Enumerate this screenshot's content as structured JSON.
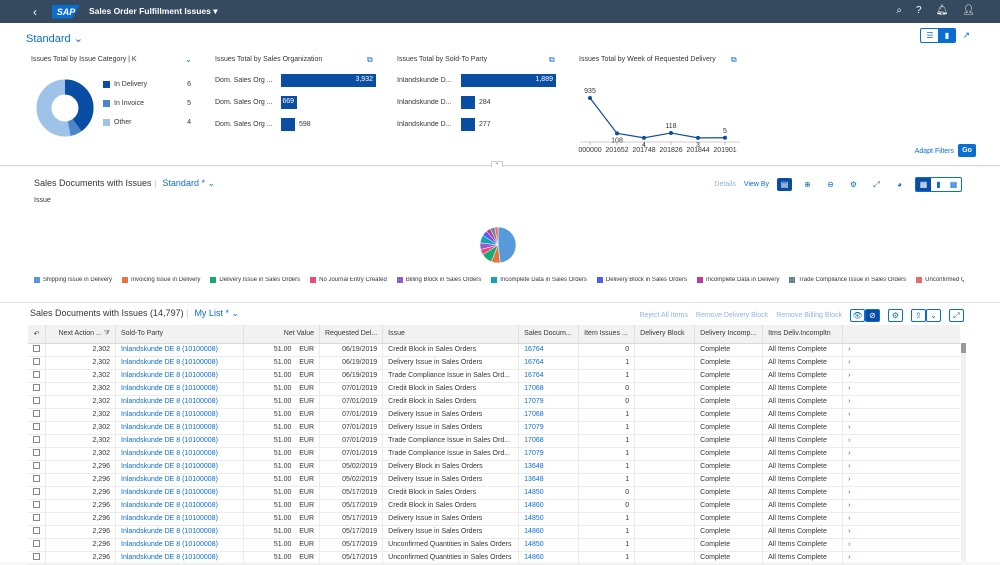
{
  "shell": {
    "title": "Sales Order Fulfillment Issues"
  },
  "header": {
    "variant": "Standard",
    "adapt_filters": "Adapt Filters",
    "go": "Go"
  },
  "cards": {
    "category": {
      "title": "Issues Total by Issue Category  | K",
      "legend": [
        {
          "label": "In Delivery",
          "value": "6",
          "color": "#0a4ea3"
        },
        {
          "label": "In Invoice",
          "value": "5",
          "color": "#4a86c8"
        },
        {
          "label": "Other",
          "value": "4",
          "color": "#9fc3e8"
        }
      ]
    },
    "sales_org": {
      "title": "Issues Total by Sales Organization",
      "rows": [
        {
          "label": "Dom. Sales Org ...",
          "value": "3,932",
          "num": 3932
        },
        {
          "label": "Dom. Sales Org ...",
          "value": "669",
          "num": 669
        },
        {
          "label": "Dom. Sales Org ...",
          "value": "598",
          "num": 598
        }
      ]
    },
    "sold_to": {
      "title": "Issues Total by Sold-To Party",
      "rows": [
        {
          "label": "Inlandskunde D...",
          "value": "1,889",
          "num": 1889
        },
        {
          "label": "Inlandskunde D...",
          "value": "284",
          "num": 284
        },
        {
          "label": "Inlandskunde D...",
          "value": "277",
          "num": 277
        }
      ]
    },
    "week": {
      "title": "Issues Total by Week of Requested Delivery"
    }
  },
  "chart_data": {
    "type": "line",
    "categories": [
      "000000",
      "201652",
      "201748",
      "201826",
      "201844",
      "201901"
    ],
    "values": [
      935,
      108,
      4,
      118,
      3,
      5
    ],
    "labels": [
      "935",
      "108",
      "4",
      "118",
      "3",
      "5"
    ]
  },
  "section1": {
    "title": "Sales Documents with Issues",
    "variant": "Standard *",
    "issue_label": "Issue",
    "details": "Details",
    "view_by": "View By",
    "legend": [
      {
        "label": "Shipping Issue in Delivery",
        "color": "#5899da"
      },
      {
        "label": "Invoicing Issue in Delivery",
        "color": "#e8743b"
      },
      {
        "label": "Delivery Issue in Sales Orders",
        "color": "#19a979"
      },
      {
        "label": "No Journal Entry Created",
        "color": "#ed4a7b"
      },
      {
        "label": "Billing Block in Sales Orders",
        "color": "#945ecf"
      },
      {
        "label": "Incomplete Data in Sales Orders",
        "color": "#13a4b4"
      },
      {
        "label": "Delivery Block in Sales Orders",
        "color": "#525df4"
      },
      {
        "label": "Incomplete Data in Delivery",
        "color": "#bf399e"
      },
      {
        "label": "Trade Compliance Issue in Sales Orders",
        "color": "#6c8893"
      },
      {
        "label": "Unconfirmed Q",
        "color": "#ee6868"
      }
    ]
  },
  "section2": {
    "title": "Sales Documents with Issues (14,797)",
    "variant": "My List *",
    "actions": [
      "Reject All Items",
      "Remove Delivery Block",
      "Remove Billing Block"
    ]
  },
  "table": {
    "columns": [
      "Next Action ...",
      "Sold-To Party",
      "Net Value",
      "Requested Del...",
      "Issue",
      "Sales Docum...",
      "Item Issues ...",
      "Delivery Block",
      "Delivery Incomp...",
      "Itms Deliv.Incompltn"
    ],
    "rows": [
      [
        "2,302",
        "Inlandskunde DE 8 (10100008)",
        "51.00",
        "EUR",
        "06/19/2019",
        "Credit Block in Sales Orders",
        "16764",
        "0",
        "",
        "Complete",
        "All Items Complete"
      ],
      [
        "2,302",
        "Inlandskunde DE 8 (10100008)",
        "51.00",
        "EUR",
        "06/19/2019",
        "Delivery Issue in Sales Orders",
        "16764",
        "1",
        "",
        "Complete",
        "All Items Complete"
      ],
      [
        "2,302",
        "Inlandskunde DE 8 (10100008)",
        "51.00",
        "EUR",
        "06/19/2019",
        "Trade Compliance Issue in Sales Ord...",
        "16764",
        "1",
        "",
        "Complete",
        "All Items Complete"
      ],
      [
        "2,302",
        "Inlandskunde DE 8 (10100008)",
        "51.00",
        "EUR",
        "07/01/2019",
        "Credit Block in Sales Orders",
        "17068",
        "0",
        "",
        "Complete",
        "All Items Complete"
      ],
      [
        "2,302",
        "Inlandskunde DE 8 (10100008)",
        "51.00",
        "EUR",
        "07/01/2019",
        "Credit Block in Sales Orders",
        "17079",
        "0",
        "",
        "Complete",
        "All Items Complete"
      ],
      [
        "2,302",
        "Inlandskunde DE 8 (10100008)",
        "51.00",
        "EUR",
        "07/01/2019",
        "Delivery Issue in Sales Orders",
        "17068",
        "1",
        "",
        "Complete",
        "All Items Complete"
      ],
      [
        "2,302",
        "Inlandskunde DE 8 (10100008)",
        "51.00",
        "EUR",
        "07/01/2019",
        "Delivery Issue in Sales Orders",
        "17079",
        "1",
        "",
        "Complete",
        "All Items Complete"
      ],
      [
        "2,302",
        "Inlandskunde DE 8 (10100008)",
        "51.00",
        "EUR",
        "07/01/2019",
        "Trade Compliance Issue in Sales Ord...",
        "17068",
        "1",
        "",
        "Complete",
        "All Items Complete"
      ],
      [
        "2,302",
        "Inlandskunde DE 8 (10100008)",
        "51.00",
        "EUR",
        "07/01/2019",
        "Trade Compliance Issue in Sales Ord...",
        "17079",
        "1",
        "",
        "Complete",
        "All Items Complete"
      ],
      [
        "2,296",
        "Inlandskunde DE 8 (10100008)",
        "51.00",
        "EUR",
        "05/02/2019",
        "Delivery Block in Sales Orders",
        "13648",
        "1",
        "",
        "Complete",
        "All Items Complete"
      ],
      [
        "2,296",
        "Inlandskunde DE 8 (10100008)",
        "51.00",
        "EUR",
        "05/02/2019",
        "Delivery Issue in Sales Orders",
        "13648",
        "1",
        "",
        "Complete",
        "All Items Complete"
      ],
      [
        "2,296",
        "Inlandskunde DE 8 (10100008)",
        "51.00",
        "EUR",
        "05/17/2019",
        "Credit Block in Sales Orders",
        "14850",
        "0",
        "",
        "Complete",
        "All Items Complete"
      ],
      [
        "2,296",
        "Inlandskunde DE 8 (10100008)",
        "51.00",
        "EUR",
        "05/17/2019",
        "Credit Block in Sales Orders",
        "14860",
        "0",
        "",
        "Complete",
        "All Items Complete"
      ],
      [
        "2,296",
        "Inlandskunde DE 8 (10100008)",
        "51.00",
        "EUR",
        "05/17/2019",
        "Delivery Issue in Sales Orders",
        "14850",
        "1",
        "",
        "Complete",
        "All Items Complete"
      ],
      [
        "2,296",
        "Inlandskunde DE 8 (10100008)",
        "51.00",
        "EUR",
        "05/17/2019",
        "Delivery Issue in Sales Orders",
        "14860",
        "1",
        "",
        "Complete",
        "All Items Complete"
      ],
      [
        "2,296",
        "Inlandskunde DE 8 (10100008)",
        "51.00",
        "EUR",
        "05/17/2019",
        "Unconfirmed Quantities in Sales Orders",
        "14850",
        "1",
        "",
        "Complete",
        "All Items Complete"
      ],
      [
        "2,296",
        "Inlandskunde DE 8 (10100008)",
        "51.00",
        "EUR",
        "05/17/2019",
        "Unconfirmed Quantities in Sales Orders",
        "14860",
        "1",
        "",
        "Complete",
        "All Items Complete"
      ]
    ]
  }
}
